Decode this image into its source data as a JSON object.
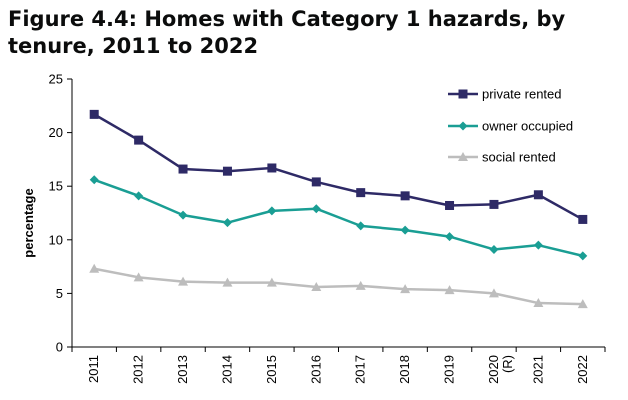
{
  "chart_data": {
    "type": "line",
    "title": "Figure 4.4: Homes with Category 1 hazards, by tenure, 2011 to 2022",
    "ylabel": "percentage",
    "xlabel": "",
    "categories": [
      [
        "2011"
      ],
      [
        "2012"
      ],
      [
        "2013"
      ],
      [
        "2014"
      ],
      [
        "2015"
      ],
      [
        "2016"
      ],
      [
        "2017"
      ],
      [
        "2018"
      ],
      [
        "2019"
      ],
      [
        "2020",
        "(R)"
      ],
      [
        "2021"
      ],
      [
        "2022"
      ]
    ],
    "ylim": [
      0,
      25
    ],
    "yticks": [
      0,
      5,
      10,
      15,
      20,
      25
    ],
    "grid": false,
    "legend": "top-right",
    "series": [
      {
        "name": "private rented",
        "color": "#2e2a66",
        "marker": "square",
        "values": [
          21.7,
          19.3,
          16.6,
          16.4,
          16.7,
          15.4,
          14.4,
          14.1,
          13.2,
          13.3,
          14.2,
          11.9
        ]
      },
      {
        "name": "owner occupied",
        "color": "#1a9e94",
        "marker": "diamond",
        "values": [
          15.6,
          14.1,
          12.3,
          11.6,
          12.7,
          12.9,
          11.3,
          10.9,
          10.3,
          9.1,
          9.5,
          8.5
        ]
      },
      {
        "name": "social rented",
        "color": "#bdbdbd",
        "marker": "triangle",
        "values": [
          7.3,
          6.5,
          6.1,
          6.0,
          6.0,
          5.6,
          5.7,
          5.4,
          5.3,
          5.0,
          4.1,
          4.0
        ]
      }
    ]
  }
}
